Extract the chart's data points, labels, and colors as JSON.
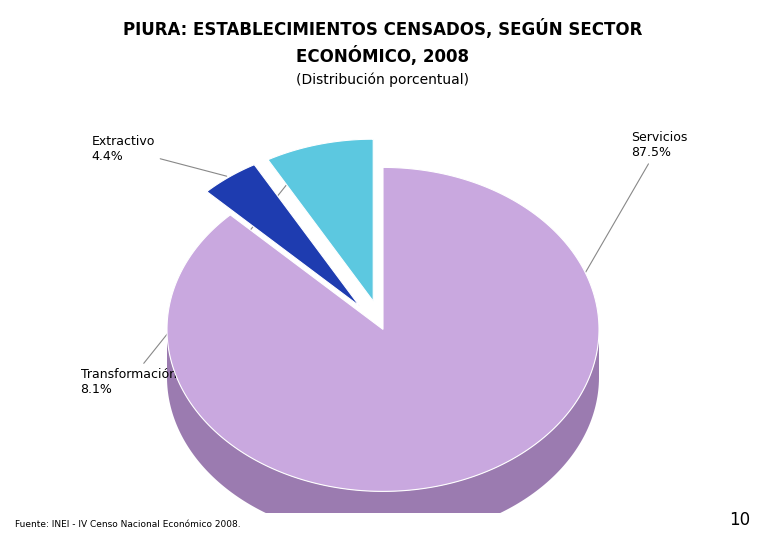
{
  "title_line1": "PIURA: ESTABLECIMIENTOS CENSADOS, SEGÚN SECTOR",
  "title_line2": "ECONÓMICO, 2008",
  "subtitle": "(Distribución porcentual)",
  "source": "Fuente: INEI - IV Censo Nacional Económico 2008.",
  "page_number": "10",
  "slices": [
    {
      "label": "Servicios",
      "pct": 87.5,
      "color": "#C9A8DF",
      "shadow_color": "#9B7BB0",
      "explode": 0.0
    },
    {
      "label": "Extractivo",
      "pct": 4.4,
      "color": "#1E3CB0",
      "shadow_color": "#162980",
      "explode": 0.18
    },
    {
      "label": "Transformación",
      "pct": 8.1,
      "color": "#5CC8E0",
      "shadow_color": "#2A8090",
      "explode": 0.18
    }
  ],
  "figsize": [
    7.66,
    5.4
  ],
  "dpi": 100,
  "bg_color": "#FFFFFF",
  "title_fontsize": 12,
  "subtitle_fontsize": 10,
  "label_fontsize": 9,
  "source_fontsize": 6.5
}
